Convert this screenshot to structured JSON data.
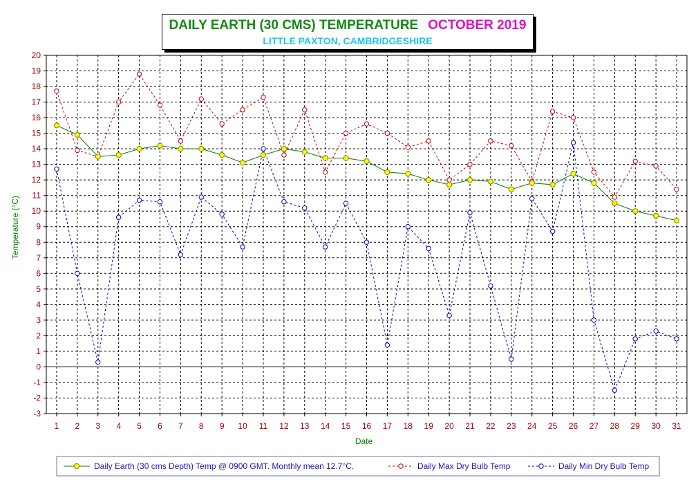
{
  "title": {
    "main": "DAILY EARTH (30 CMS) TEMPERATURE",
    "month": "OCTOBER 2019",
    "subtitle": "LITTLE PAXTON, CAMBRIDGESHIRE"
  },
  "colors": {
    "earth_line": "#008000",
    "earth_marker": "#ffff00",
    "max_series": "#c00000",
    "min_series": "#0000c0",
    "axis_label_green": "#008000",
    "tick_label_red": "#a00000"
  },
  "chart_data": {
    "type": "line",
    "xlabel": "Date",
    "ylabel": "Temperature (°C)",
    "ylim": [
      -3,
      20
    ],
    "xlim": [
      1,
      31
    ],
    "grid": true,
    "legend_position": "bottom",
    "x": [
      1,
      2,
      3,
      4,
      5,
      6,
      7,
      8,
      9,
      10,
      11,
      12,
      13,
      14,
      15,
      16,
      17,
      18,
      19,
      20,
      21,
      22,
      23,
      24,
      25,
      26,
      27,
      28,
      29,
      30,
      31
    ],
    "series": [
      {
        "name": "Daily Earth (30 cms Depth) Temp @ 0900 GMT. Monthly mean 12.7°C.",
        "values": [
          15.5,
          14.9,
          13.5,
          13.6,
          14.0,
          14.2,
          14.0,
          14.0,
          13.6,
          13.1,
          13.6,
          14.0,
          13.8,
          13.4,
          13.4,
          13.2,
          12.5,
          12.4,
          12.0,
          11.7,
          12.0,
          11.9,
          11.4,
          11.8,
          11.7,
          12.4,
          11.8,
          10.5,
          10.0,
          9.7,
          9.4
        ]
      },
      {
        "name": "Daily Max Dry Bulb Temp",
        "values": [
          17.7,
          13.9,
          13.5,
          17.0,
          18.8,
          16.8,
          14.5,
          17.2,
          15.6,
          16.5,
          17.3,
          13.6,
          16.5,
          12.5,
          15.0,
          15.6,
          15.0,
          14.1,
          14.5,
          12.0,
          13.0,
          14.5,
          14.2,
          11.9,
          16.4,
          16.0,
          12.5,
          10.9,
          13.2,
          12.9,
          11.4
        ]
      },
      {
        "name": "Daily Min Dry Bulb Temp",
        "values": [
          12.7,
          6.0,
          0.3,
          9.6,
          10.7,
          10.6,
          7.2,
          10.9,
          9.8,
          7.7,
          14.0,
          10.6,
          10.2,
          7.7,
          10.5,
          8.0,
          1.4,
          9.0,
          7.6,
          3.3,
          9.9,
          5.2,
          0.5,
          10.8,
          8.7,
          14.4,
          3.0,
          -1.5,
          1.8,
          2.3,
          1.8
        ]
      }
    ]
  }
}
